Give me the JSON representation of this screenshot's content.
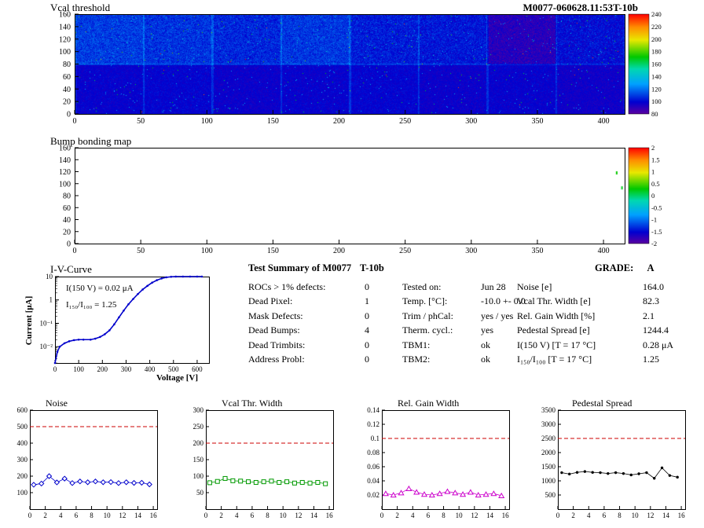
{
  "summary": {
    "title": "Test Summary of M0077",
    "module_type": "T-10b",
    "grade_label": "GRADE:",
    "grade": "A",
    "defects": [
      {
        "label": "ROCs > 1% defects:",
        "value": "0"
      },
      {
        "label": "Dead Pixel:",
        "value": "1"
      },
      {
        "label": "Mask Defects:",
        "value": "0"
      },
      {
        "label": "Dead Bumps:",
        "value": "4"
      },
      {
        "label": "Dead Trimbits:",
        "value": "0"
      },
      {
        "label": "Address Probl:",
        "value": "0"
      }
    ],
    "conditions": [
      {
        "label": "Tested on:",
        "value": "Jun 28"
      },
      {
        "label": "Temp. [°C]:",
        "value": "-10.0 +- 0.0"
      },
      {
        "label": "Trim / phCal:",
        "value": "yes / yes"
      },
      {
        "label": "Therm. cycl.:",
        "value": "yes"
      },
      {
        "label": "TBM1:",
        "value": "ok"
      },
      {
        "label": "TBM2:",
        "value": "ok"
      }
    ],
    "results": [
      {
        "label": "Noise [e]",
        "value": "164.0"
      },
      {
        "label": "Vcal Thr. Width [e]",
        "value": "82.3"
      },
      {
        "label": "Rel. Gain Width [%]",
        "value": "2.1"
      },
      {
        "label": "Pedestal Spread [e]",
        "value": "1244.4"
      },
      {
        "label": "I(150 V) [T = 17 °C]",
        "value": "0.28 μA"
      },
      {
        "label": "I₁₅₀/I₁₀₀  [T = 17 °C]",
        "value": "1.25"
      }
    ]
  },
  "chart_data": [
    {
      "id": "vcal_threshold",
      "type": "heatmap",
      "title": "Vcal threshold",
      "right_title": "M0077-060628.11:53T-10b",
      "xlim": [
        0,
        416
      ],
      "ylim": [
        0,
        160
      ],
      "x_ticks": [
        0,
        50,
        100,
        150,
        200,
        250,
        300,
        350,
        400
      ],
      "y_ticks": [
        0,
        20,
        40,
        60,
        80,
        100,
        120,
        140,
        160
      ],
      "colorbar": {
        "min": 80,
        "max": 240,
        "ticks": [
          80,
          100,
          120,
          140,
          160,
          180,
          200,
          220,
          240
        ]
      },
      "grid": {
        "cols": 8,
        "rows": 2
      },
      "row_base": {
        "top": 106,
        "bottom": 98
      },
      "col_offsets_top": [
        4,
        2,
        0,
        3,
        -2,
        -3,
        -15,
        -5
      ],
      "col_offsets_bottom": [
        0,
        1,
        -1,
        0,
        1,
        -1,
        0,
        -2
      ],
      "noise_sigma_top": 7,
      "noise_sigma_bottom": 4,
      "palette": [
        [
          0,
          "#5a00a0"
        ],
        [
          0.12,
          "#0000d0"
        ],
        [
          0.3,
          "#00a0ff"
        ],
        [
          0.45,
          "#00d8b0"
        ],
        [
          0.57,
          "#00c800"
        ],
        [
          0.74,
          "#e8e800"
        ],
        [
          0.87,
          "#ff8c00"
        ],
        [
          1,
          "#ff0000"
        ]
      ]
    },
    {
      "id": "bump_bonding",
      "type": "heatmap",
      "title": "Bump bonding map",
      "xlim": [
        0,
        416
      ],
      "ylim": [
        0,
        160
      ],
      "x_ticks": [
        0,
        50,
        100,
        150,
        200,
        250,
        300,
        350,
        400
      ],
      "y_ticks": [
        0,
        20,
        40,
        60,
        80,
        100,
        120,
        140,
        160
      ],
      "colorbar": {
        "min": -2,
        "max": 2,
        "ticks": [
          -2,
          -1.5,
          -1,
          -0.5,
          0,
          0.5,
          1,
          1.5,
          2
        ]
      },
      "points": [
        {
          "x": 410,
          "y": 118,
          "v": 0.3
        },
        {
          "x": 414,
          "y": 93,
          "v": 0.2
        }
      ],
      "palette": [
        [
          0,
          "#5a00a0"
        ],
        [
          0.12,
          "#0000d0"
        ],
        [
          0.3,
          "#00a0ff"
        ],
        [
          0.45,
          "#00d8b0"
        ],
        [
          0.57,
          "#00c800"
        ],
        [
          0.74,
          "#e8e800"
        ],
        [
          0.87,
          "#ff8c00"
        ],
        [
          1,
          "#ff0000"
        ]
      ]
    },
    {
      "id": "iv_curve",
      "type": "line",
      "title": "I-V-Curve",
      "xlabel": "Voltage [V]",
      "ylabel": "Current [μA]",
      "annotations": [
        "I(150 V) = 0.02 μA",
        "I₁₅₀/I₁₀₀ =  1.25"
      ],
      "xlim": [
        0,
        650
      ],
      "x_ticks": [
        0,
        100,
        200,
        300,
        400,
        500,
        600
      ],
      "ylog": true,
      "ylim": [
        0.002,
        10
      ],
      "y_ticks": [
        {
          "v": 10,
          "label": "10"
        },
        {
          "v": 1,
          "label": "1"
        },
        {
          "v": 0.1,
          "label": "10⁻¹"
        },
        {
          "v": 0.01,
          "label": "10⁻²"
        }
      ],
      "color": "#0000cc",
      "x": [
        0,
        10,
        20,
        40,
        60,
        80,
        100,
        120,
        150,
        170,
        190,
        210,
        230,
        250,
        270,
        290,
        310,
        330,
        350,
        370,
        390,
        410,
        430,
        450,
        470,
        490,
        510,
        540,
        570,
        600,
        620
      ],
      "y": [
        0.002,
        0.006,
        0.01,
        0.014,
        0.017,
        0.019,
        0.02,
        0.02,
        0.02,
        0.022,
        0.026,
        0.034,
        0.05,
        0.09,
        0.18,
        0.35,
        0.65,
        1.1,
        1.8,
        2.8,
        4.0,
        5.5,
        7.0,
        8.3,
        9.3,
        9.8,
        10,
        10,
        10,
        10,
        10
      ]
    },
    {
      "id": "noise",
      "type": "scatter-line",
      "title": "Noise",
      "xlim": [
        0,
        16.5
      ],
      "x_ticks": [
        0,
        2,
        4,
        6,
        8,
        10,
        12,
        14,
        16
      ],
      "ylim": [
        0,
        600
      ],
      "y_ticks": [
        100,
        200,
        300,
        400,
        500,
        600
      ],
      "limit": 500,
      "limit_color": "#cc0000",
      "marker": "diamond",
      "color": "#0000cc",
      "yerr": 14,
      "x": [
        0.5,
        1.5,
        2.5,
        3.5,
        4.5,
        5.5,
        6.5,
        7.5,
        8.5,
        9.5,
        10.5,
        11.5,
        12.5,
        13.5,
        14.5,
        15.5
      ],
      "values": [
        148,
        155,
        200,
        162,
        185,
        158,
        168,
        163,
        168,
        163,
        164,
        158,
        163,
        159,
        160,
        150
      ]
    },
    {
      "id": "vcal_thr_width",
      "type": "scatter-line",
      "title": "Vcal Thr. Width",
      "xlim": [
        0,
        16.5
      ],
      "x_ticks": [
        0,
        2,
        4,
        6,
        8,
        10,
        12,
        14,
        16
      ],
      "ylim": [
        0,
        300
      ],
      "y_ticks": [
        50,
        100,
        150,
        200,
        250,
        300
      ],
      "limit": 200,
      "limit_color": "#cc0000",
      "marker": "square",
      "color": "#009900",
      "yerr": 5,
      "x": [
        0.5,
        1.5,
        2.5,
        3.5,
        4.5,
        5.5,
        6.5,
        7.5,
        8.5,
        9.5,
        10.5,
        11.5,
        12.5,
        13.5,
        14.5,
        15.5
      ],
      "values": [
        80,
        84,
        93,
        86,
        85,
        83,
        81,
        83,
        85,
        81,
        83,
        79,
        81,
        79,
        81,
        77
      ]
    },
    {
      "id": "rel_gain_width",
      "type": "scatter-line",
      "title": "Rel. Gain Width",
      "xlim": [
        0,
        16.5
      ],
      "x_ticks": [
        0,
        2,
        4,
        6,
        8,
        10,
        12,
        14,
        16
      ],
      "ylim": [
        0,
        0.14
      ],
      "y_ticks": [
        0.02,
        0.04,
        0.06,
        0.08,
        0.1,
        0.12,
        0.14
      ],
      "limit": 0.1,
      "limit_color": "#cc0000",
      "marker": "triangle",
      "color": "#cc00cc",
      "yerr": 0.0015,
      "x": [
        0.5,
        1.5,
        2.5,
        3.5,
        4.5,
        5.5,
        6.5,
        7.5,
        8.5,
        9.5,
        10.5,
        11.5,
        12.5,
        13.5,
        14.5,
        15.5
      ],
      "values": [
        0.022,
        0.02,
        0.023,
        0.029,
        0.024,
        0.021,
        0.02,
        0.022,
        0.025,
        0.023,
        0.021,
        0.024,
        0.02,
        0.021,
        0.022,
        0.019
      ]
    },
    {
      "id": "pedestal_spread",
      "type": "scatter-line",
      "title": "Pedestal Spread",
      "xlim": [
        0,
        16.5
      ],
      "x_ticks": [
        0,
        2,
        4,
        6,
        8,
        10,
        12,
        14,
        16
      ],
      "ylim": [
        0,
        3500
      ],
      "y_ticks": [
        500,
        1000,
        1500,
        2000,
        2500,
        3000,
        3500
      ],
      "limit": 2500,
      "limit_color": "#cc0000",
      "marker": "dot",
      "color": "#000000",
      "yerr": 45,
      "x": [
        0.5,
        1.5,
        2.5,
        3.5,
        4.5,
        5.5,
        6.5,
        7.5,
        8.5,
        9.5,
        10.5,
        11.5,
        12.5,
        13.5,
        14.5,
        15.5
      ],
      "values": [
        1290,
        1240,
        1300,
        1330,
        1300,
        1290,
        1260,
        1290,
        1260,
        1210,
        1250,
        1290,
        1090,
        1460,
        1190,
        1130
      ]
    }
  ]
}
